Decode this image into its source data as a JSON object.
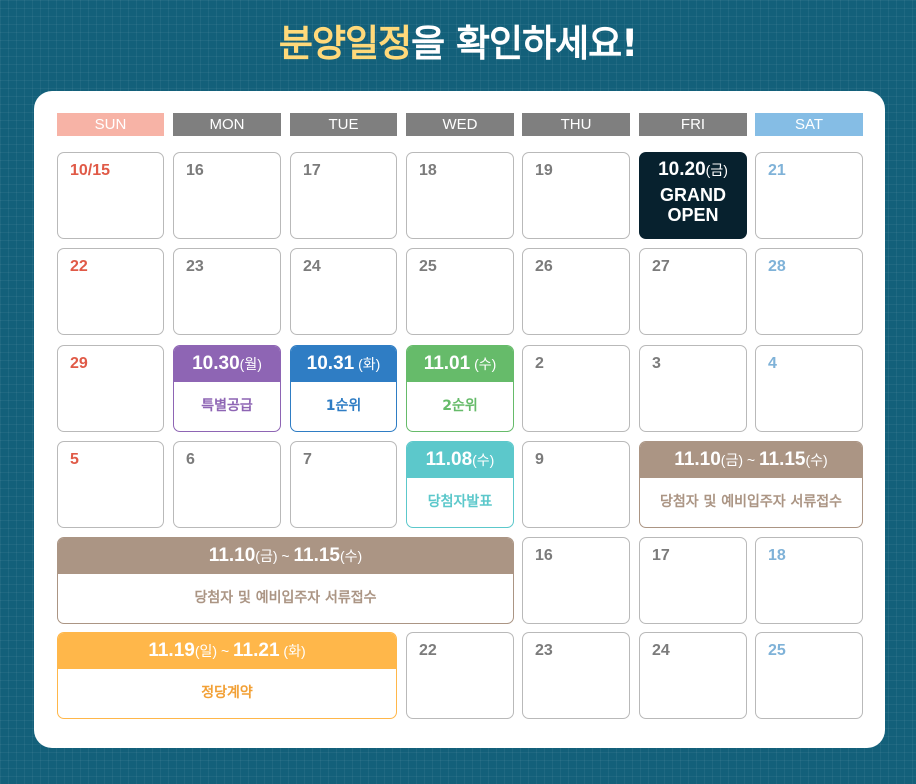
{
  "title": {
    "highlight": "분양일정",
    "rest": "을 확인하세요!"
  },
  "weekdays": [
    "SUN",
    "MON",
    "TUE",
    "WED",
    "THU",
    "FRI",
    "SAT"
  ],
  "colors": {
    "sun_header": "#f7b3a6",
    "weekday_header": "#7f7f7f",
    "sat_header": "#85bde5",
    "sun_text": "#e05a47",
    "sat_text": "#7fb2d8",
    "grand_open_bg": "#07212e",
    "special_supply": "#8e65b4",
    "first_rank": "#2f7dc4",
    "second_rank": "#66bb6a",
    "winner_announce": "#5cc8cb",
    "document_submission": "#ab9584",
    "contract": "#ffb74a",
    "background": "#13607a"
  },
  "days": {
    "d1015": "10/15",
    "d16": "16",
    "d17": "17",
    "d18": "18",
    "d19": "19",
    "d21": "21",
    "d22": "22",
    "d23": "23",
    "d24": "24",
    "d25": "25",
    "d26": "26",
    "d27": "27",
    "d28": "28",
    "d29": "29",
    "d2": "2",
    "d3": "3",
    "d4": "4",
    "d5": "5",
    "d6": "6",
    "d7": "7",
    "d9": "9",
    "d16b": "16",
    "d17b": "17",
    "d18b": "18",
    "d22b": "22",
    "d23b": "23",
    "d24b": "24",
    "d25b": "25"
  },
  "grand_open": {
    "date": "10.20",
    "dow": "(금)",
    "line1": "GRAND",
    "line2": "OPEN"
  },
  "events": {
    "special_supply": {
      "date": "10.30",
      "dow": "(월)",
      "label": "특별공급"
    },
    "first_rank": {
      "date": "10.31",
      "dow": " (화)",
      "label": "1순위"
    },
    "second_rank": {
      "date": "11.01",
      "dow": " (수)",
      "label": "2순위"
    },
    "winner_announce": {
      "date": "11.08",
      "dow": "(수)",
      "label": "당첨자발표"
    },
    "document_submission_a": {
      "start": "11.10",
      "start_dow": "(금)",
      "sep": " ~ ",
      "end": "11.15",
      "end_dow": "(수)",
      "label": "당첨자 및 예비입주자 서류접수"
    },
    "document_submission_b": {
      "start": "11.10",
      "start_dow": "(금)",
      "sep": " ~ ",
      "end": "11.15",
      "end_dow": "(수)",
      "label": "당첨자 및 예비입주자 서류접수"
    },
    "contract": {
      "start": "11.19",
      "start_dow": "(일)",
      "sep": " ~ ",
      "end": "11.21",
      "end_dow": " (화)",
      "label": "정당계약"
    }
  }
}
